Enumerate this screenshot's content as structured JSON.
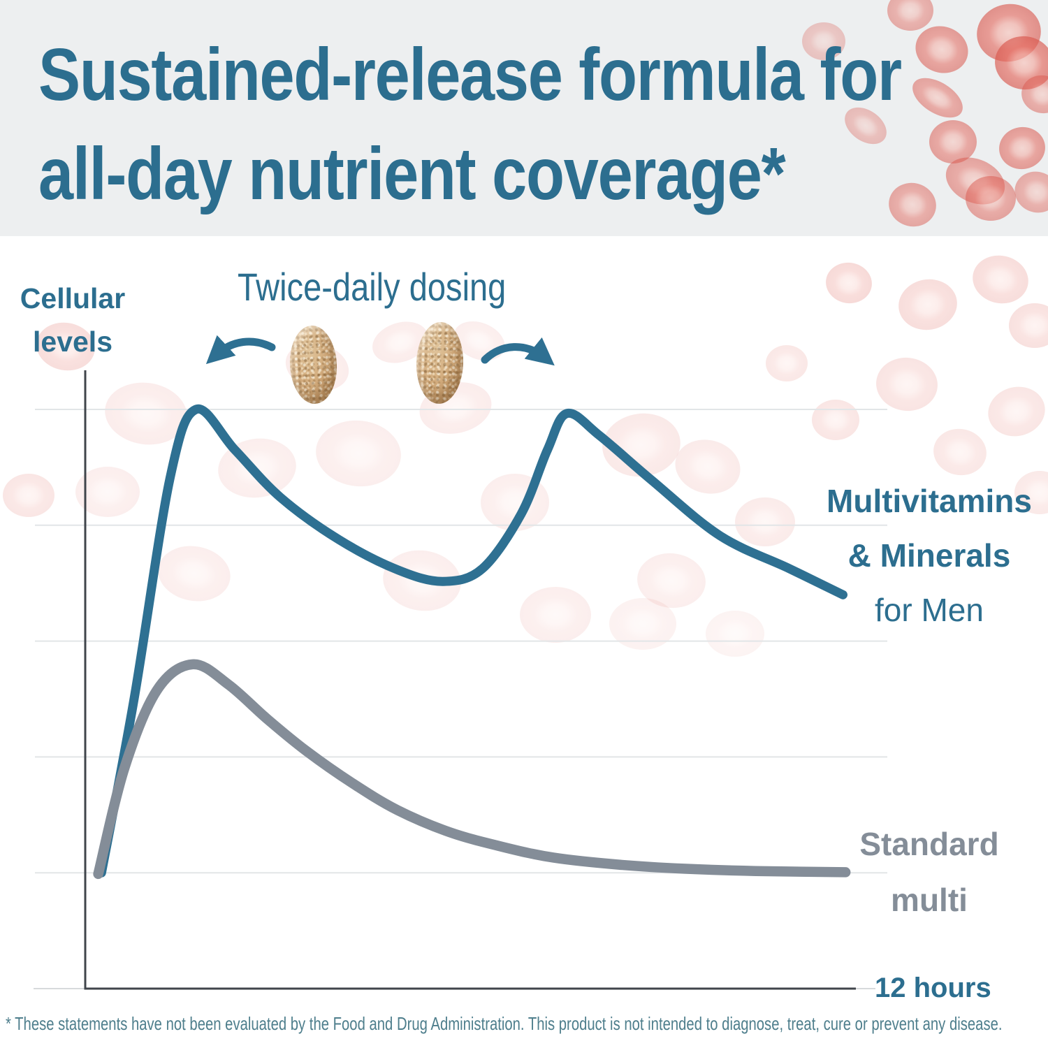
{
  "header": {
    "title_line1": "Sustained-release formula for",
    "title_line2": "all-day nutrient coverage*"
  },
  "chart_data": {
    "type": "line",
    "title": "Twice-daily dosing",
    "ylabel": "Cellular levels",
    "xlabel": "12 hours",
    "x_unit": "hours",
    "x_range": [
      0,
      12
    ],
    "y_range": [
      0,
      110
    ],
    "grid": true,
    "gridline_levels": [
      20,
      40,
      60,
      80,
      100
    ],
    "legend_position": "right",
    "series": [
      {
        "name": "Multivitamins & Minerals for Men",
        "label_lines": [
          "Multivitamins",
          "& Minerals",
          "for Men"
        ],
        "color": "#2E7092",
        "points": [
          [
            0.25,
            20
          ],
          [
            0.75,
            50
          ],
          [
            1.3,
            88
          ],
          [
            1.7,
            100
          ],
          [
            2.3,
            93
          ],
          [
            3.0,
            84.8
          ],
          [
            3.9,
            77.5
          ],
          [
            4.8,
            72.3
          ],
          [
            5.5,
            70.3
          ],
          [
            6.1,
            72.5
          ],
          [
            6.7,
            82
          ],
          [
            7.1,
            93
          ],
          [
            7.4,
            99.3
          ],
          [
            7.9,
            95.5
          ],
          [
            8.7,
            87.8
          ],
          [
            9.75,
            78.2
          ],
          [
            10.8,
            72.6
          ],
          [
            11.64,
            68
          ]
        ]
      },
      {
        "name": "Standard multi",
        "label_lines": [
          "Standard",
          "multi"
        ],
        "color": "#848D98",
        "points": [
          [
            0.2,
            19.8
          ],
          [
            0.6,
            38
          ],
          [
            1.1,
            51.5
          ],
          [
            1.65,
            56
          ],
          [
            2.2,
            52.5
          ],
          [
            2.8,
            46.5
          ],
          [
            3.4,
            41
          ],
          [
            4.1,
            35.5
          ],
          [
            4.8,
            30.8
          ],
          [
            5.6,
            27
          ],
          [
            6.4,
            24.5
          ],
          [
            7.2,
            22.6
          ],
          [
            8.2,
            21.4
          ],
          [
            9.2,
            20.7
          ],
          [
            10.3,
            20.3
          ],
          [
            11.68,
            20.1
          ]
        ]
      }
    ],
    "annotations": {
      "dosing_label": "Twice-daily dosing",
      "doses_shown": 2
    }
  },
  "footer": {
    "disclaimer": "* These statements have not been evaluated by the Food and Drug Administration. This product is not intended to diagnose, treat, cure or prevent any disease."
  },
  "colors": {
    "accent_teal": "#2E7092",
    "text_teal": "#2C6E8F",
    "standard_gray": "#848D98",
    "axis": "#40454B",
    "gridline": "#E2E5E7",
    "header_bg": "#EDEFF0",
    "rbc": "#E4695E",
    "disclaimer_teal": "#4E7E8C",
    "pill_tan": "#C8A273",
    "background": "#FFFFFF"
  }
}
